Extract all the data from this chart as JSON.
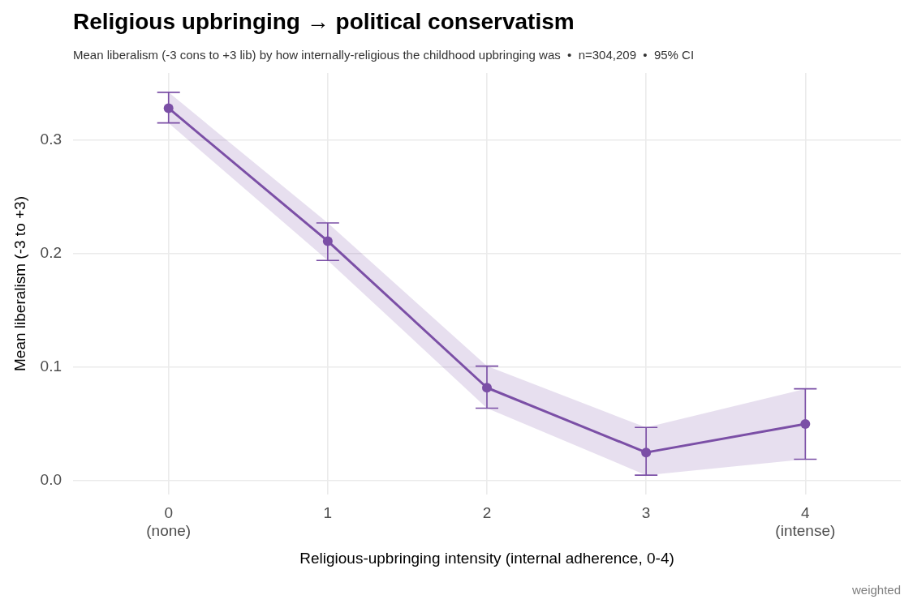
{
  "chart_data": {
    "type": "line",
    "title": "Religious upbringing → political conservatism",
    "subtitle": "Mean liberalism (-3 cons to +3 lib) by how internally-religious the childhood upbringing was  •  n=304,209  •  95% CI",
    "xlabel": "Religious-upbringing intensity (internal adherence, 0-4)",
    "ylabel": "Mean liberalism (-3 to +3)",
    "annotations": [
      "weighted"
    ],
    "x": [
      0,
      1,
      2,
      3,
      4
    ],
    "series": [
      {
        "color": "#7b4fa6",
        "values": [
          0.328,
          0.211,
          0.082,
          0.025,
          0.05
        ],
        "errors": [
          [
            0.315,
            0.342
          ],
          [
            0.194,
            0.227
          ],
          [
            0.064,
            0.101
          ],
          [
            0.005,
            0.047
          ],
          [
            0.019,
            0.081
          ]
        ],
        "lower": [
          0.315,
          0.194,
          0.064,
          0.005,
          0.019
        ],
        "upper": [
          0.342,
          0.227,
          0.101,
          0.047,
          0.081
        ]
      }
    ],
    "xlim": [
      -0.6,
      4.6
    ],
    "xticks": [
      {
        "value": 0,
        "label": "0\n(none)"
      },
      1,
      2,
      3,
      {
        "value": 4,
        "label": "4\n(intense)"
      }
    ],
    "ylim": [
      -0.012,
      0.359
    ],
    "yticks": [
      {
        "value": 0,
        "label": "0.0"
      },
      0.1,
      0.2,
      0.3
    ],
    "grid": true,
    "marker": "circle",
    "line_style": "solid"
  }
}
